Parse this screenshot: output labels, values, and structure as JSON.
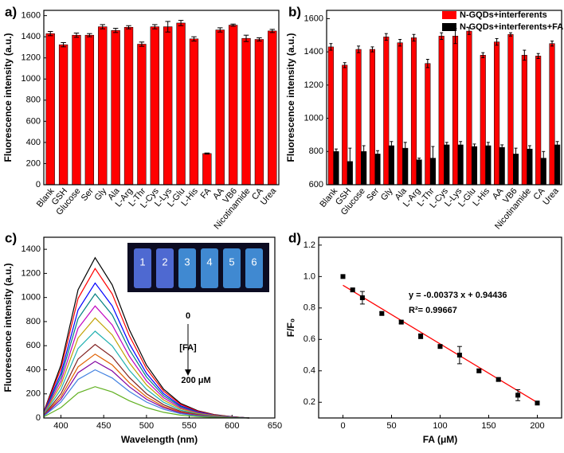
{
  "chart_data": [
    {
      "type": "bar",
      "label": "a)",
      "ylabel": "Fluorescence intensity (a.u.)",
      "categories": [
        "Blank",
        "GSH",
        "Glucose",
        "Ser",
        "Gly",
        "Ala",
        "L-Arg",
        "L-Thr",
        "L-Cys",
        "L-Lys",
        "L-Glu",
        "L-His",
        "FA",
        "AA",
        "VB6",
        "Nicotinamide",
        "CA",
        "Urea"
      ],
      "values": [
        1430,
        1325,
        1415,
        1415,
        1495,
        1460,
        1490,
        1330,
        1495,
        1495,
        1530,
        1380,
        295,
        1465,
        1510,
        1385,
        1375,
        1455
      ],
      "errors": [
        20,
        20,
        20,
        15,
        20,
        20,
        15,
        20,
        20,
        50,
        25,
        20,
        5,
        20,
        10,
        30,
        15,
        15
      ],
      "color": "#ff0000",
      "ylim": [
        0,
        1650
      ],
      "yticks": [
        0,
        200,
        400,
        600,
        800,
        1000,
        1200,
        1400,
        1600
      ]
    },
    {
      "type": "bar",
      "label": "b)",
      "ylabel": "Fluorescence intensity (a.u.)",
      "categories": [
        "Blank",
        "GSH",
        "Glucose",
        "Ser",
        "Gly",
        "Ala",
        "L-Arg",
        "L-Thr",
        "L-Cys",
        "L-Lys",
        "L-Glu",
        "L-His",
        "AA",
        "VB6",
        "Nicotinamide",
        "CA",
        "Urea"
      ],
      "series": [
        {
          "name": "N-GQDs+interferents",
          "color": "#ff0000",
          "values": [
            1430,
            1320,
            1415,
            1415,
            1490,
            1455,
            1485,
            1330,
            1495,
            1495,
            1525,
            1380,
            1460,
            1505,
            1380,
            1375,
            1450
          ],
          "errors": [
            20,
            15,
            20,
            15,
            20,
            20,
            20,
            25,
            20,
            45,
            20,
            15,
            20,
            10,
            30,
            15,
            15
          ]
        },
        {
          "name": "N-GQDs+interferents+FA",
          "color": "#000000",
          "values": [
            800,
            740,
            800,
            785,
            835,
            820,
            750,
            760,
            840,
            840,
            830,
            835,
            825,
            785,
            815,
            760,
            840
          ],
          "errors": [
            15,
            80,
            35,
            20,
            25,
            35,
            10,
            70,
            15,
            20,
            15,
            20,
            15,
            35,
            20,
            40,
            20
          ]
        }
      ],
      "ylim": [
        600,
        1650
      ],
      "yticks": [
        600,
        800,
        1000,
        1200,
        1400,
        1600
      ],
      "legend": "top-right"
    },
    {
      "type": "line",
      "label": "c)",
      "xlabel": "Wavelength (nm)",
      "ylabel": "Fluorescence intensity (a.u.)",
      "x": [
        380,
        400,
        420,
        440,
        460,
        480,
        500,
        520,
        540,
        560,
        580,
        600,
        620
      ],
      "series": [
        {
          "color": "#000000",
          "values": [
            53,
            439,
            1064,
            1330,
            1104,
            732,
            439,
            239,
            120,
            60,
            27,
            11,
            0
          ]
        },
        {
          "color": "#ff0000",
          "values": [
            50,
            409,
            992,
            1240,
            1029,
            682,
            409,
            223,
            112,
            56,
            25,
            10,
            0
          ]
        },
        {
          "color": "#0000ff",
          "values": [
            45,
            370,
            896,
            1120,
            930,
            616,
            370,
            202,
            101,
            50,
            22,
            9,
            0
          ]
        },
        {
          "color": "#008080",
          "values": [
            41,
            340,
            824,
            1030,
            855,
            567,
            340,
            185,
            93,
            46,
            21,
            8,
            0
          ]
        },
        {
          "color": "#c000c0",
          "values": [
            37,
            307,
            744,
            930,
            772,
            512,
            307,
            167,
            84,
            42,
            19,
            7,
            0
          ]
        },
        {
          "color": "#c0a000",
          "values": [
            33,
            274,
            664,
            830,
            689,
            457,
            274,
            149,
            75,
            37,
            17,
            7,
            0
          ]
        },
        {
          "color": "#20b0b0",
          "values": [
            29,
            238,
            576,
            720,
            598,
            396,
            238,
            130,
            65,
            32,
            14,
            6,
            0
          ]
        },
        {
          "color": "#802020",
          "values": [
            24,
            201,
            488,
            610,
            506,
            336,
            201,
            110,
            55,
            27,
            12,
            5,
            0
          ]
        },
        {
          "color": "#e06000",
          "values": [
            21,
            175,
            424,
            530,
            440,
            292,
            175,
            95,
            48,
            24,
            11,
            4,
            0
          ]
        },
        {
          "color": "#8000a0",
          "values": [
            19,
            155,
            376,
            470,
            390,
            259,
            155,
            85,
            42,
            21,
            9,
            4,
            0
          ]
        },
        {
          "color": "#4080e0",
          "values": [
            16,
            132,
            320,
            400,
            332,
            220,
            132,
            72,
            36,
            18,
            8,
            3,
            0
          ]
        },
        {
          "color": "#60b020",
          "values": [
            10,
            86,
            208,
            260,
            216,
            143,
            86,
            47,
            23,
            12,
            5,
            2,
            0
          ]
        }
      ],
      "xlim": [
        380,
        650
      ],
      "xticks": [
        400,
        450,
        500,
        550,
        600,
        650
      ],
      "ylim": [
        0,
        1500
      ],
      "yticks": [
        0,
        200,
        400,
        600,
        800,
        1000,
        1200,
        1400
      ],
      "annotations": [
        "0",
        "[FA]",
        "200 μM"
      ],
      "inset_labels": [
        "1",
        "2",
        "3",
        "4",
        "5",
        "6"
      ]
    },
    {
      "type": "scatter",
      "label": "d)",
      "xlabel": "FA (μM)",
      "ylabel": "F/F₀",
      "x": [
        0,
        10,
        20,
        40,
        60,
        80,
        100,
        120,
        140,
        160,
        180,
        200
      ],
      "values": [
        1.0,
        0.915,
        0.865,
        0.765,
        0.71,
        0.62,
        0.555,
        0.5,
        0.4,
        0.345,
        0.245,
        0.195
      ],
      "errors": [
        0.01,
        0.01,
        0.04,
        0.01,
        0.01,
        0.015,
        0.01,
        0.055,
        0.01,
        0.01,
        0.035,
        0.01
      ],
      "color": "#000000",
      "fit": {
        "slope": -0.00373,
        "intercept": 0.94436,
        "color": "#ff0000"
      },
      "xlim": [
        -25,
        225
      ],
      "xticks": [
        0,
        50,
        100,
        150,
        200
      ],
      "ylim": [
        0.1,
        1.25
      ],
      "yticks": [
        0.2,
        0.4,
        0.6,
        0.8,
        {
          "value": 1,
          "label": "1.0"
        },
        1.2
      ],
      "annotations": [
        "y = -0.00373 x + 0.94436",
        "R²= 0.99667"
      ]
    }
  ]
}
